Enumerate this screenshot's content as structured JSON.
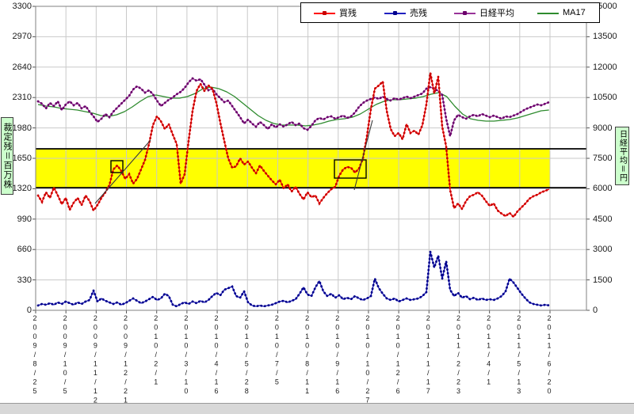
{
  "chart_data": {
    "type": "line",
    "title": "",
    "legend_position": "top",
    "grid": true,
    "colors": {
      "grid": "#c9c9c9",
      "border": "#808080",
      "band_border": "#000000",
      "annotation": "#3a3a3a",
      "background": "#ffffff"
    },
    "x_axis": {
      "labels": [
        "2009/8/25",
        "2009/10/5",
        "2009/11/12",
        "2009/12/21",
        "2010/2/1",
        "2010/3/10",
        "2010/4/16",
        "2010/5/28",
        "2010/7/5",
        "2010/8/11",
        "2010/9/16",
        "2010/10/27",
        "2010/12/6",
        "2011/1/17",
        "2011/2/23",
        "2011/4/1",
        "2011/5/13",
        "2011/6/20"
      ]
    },
    "axes": {
      "left": {
        "label": "裁定残＝百万株",
        "max": 3300,
        "ticks": [
          3300,
          2970,
          2640,
          2310,
          1980,
          1650,
          1320,
          990,
          660,
          330,
          0
        ]
      },
      "right": {
        "label": "日経平均＝円",
        "max": 15000,
        "ticks": [
          15000,
          13500,
          12000,
          10500,
          9000,
          7500,
          6000,
          4500,
          3000,
          1500,
          0
        ]
      }
    },
    "band": {
      "axis": "right",
      "from": 6050,
      "to": 7970,
      "color": "#ffff00"
    },
    "series": [
      {
        "name": "買残",
        "axis": "left",
        "color": "#ff0000",
        "marker_color": "#c80000",
        "f_start": 0.004622,
        "f_step": 0.007704,
        "values": [
          1246,
          1177,
          1281,
          1220,
          1332,
          1246,
          1152,
          1220,
          1091,
          1169,
          1220,
          1143,
          1246,
          1186,
          1083,
          1143,
          1220,
          1281,
          1358,
          1530,
          1573,
          1513,
          1427,
          1478,
          1375,
          1427,
          1530,
          1633,
          1805,
          2011,
          2106,
          2054,
          1968,
          2020,
          1908,
          1805,
          1375,
          1478,
          1839,
          2166,
          2381,
          2458,
          2381,
          2441,
          2406,
          2252,
          2037,
          1839,
          1650,
          1547,
          1564,
          1650,
          1581,
          1616,
          1547,
          1487,
          1573,
          1513,
          1461,
          1410,
          1367,
          1418,
          1324,
          1367,
          1289,
          1341,
          1263,
          1203,
          1281,
          1229,
          1246,
          1160,
          1220,
          1272,
          1315,
          1341,
          1461,
          1530,
          1556,
          1547,
          1495,
          1538,
          1650,
          1891,
          2183,
          2406,
          2441,
          2484,
          2166,
          1968,
          1891,
          1925,
          1856,
          2020,
          1925,
          1951,
          1908,
          2011,
          2234,
          2578,
          2355,
          2535,
          1994,
          1779,
          1306,
          1109,
          1160,
          1100,
          1186,
          1238,
          1255,
          1281,
          1246,
          1186,
          1134,
          1160,
          1083,
          1049,
          1023,
          1057,
          1014,
          1074,
          1117,
          1160,
          1212,
          1238,
          1255,
          1281,
          1298,
          1315
        ]
      },
      {
        "name": "売残",
        "axis": "left",
        "color": "#2020c0",
        "marker_color": "#00008b",
        "f_start": 0.004622,
        "f_step": 0.007704,
        "values": [
          52,
          69,
          60,
          77,
          60,
          86,
          69,
          95,
          77,
          60,
          86,
          69,
          95,
          112,
          215,
          95,
          129,
          103,
          86,
          69,
          86,
          60,
          77,
          103,
          129,
          103,
          77,
          95,
          120,
          146,
          112,
          129,
          180,
          155,
          60,
          43,
          69,
          86,
          69,
          95,
          77,
          103,
          86,
          112,
          155,
          189,
          163,
          223,
          241,
          258,
          155,
          137,
          206,
          86,
          52,
          43,
          52,
          43,
          52,
          60,
          77,
          95,
          103,
          86,
          103,
          120,
          180,
          249,
          172,
          155,
          249,
          318,
          206,
          155,
          180,
          137,
          163,
          120,
          137,
          120,
          155,
          129,
          112,
          129,
          155,
          344,
          241,
          180,
          129,
          112,
          129,
          95,
          112,
          129,
          112,
          120,
          129,
          155,
          198,
          636,
          464,
          593,
          344,
          533,
          223,
          155,
          189,
          137,
          155,
          120,
          137,
          112,
          129,
          112,
          120,
          112,
          129,
          155,
          206,
          344,
          301,
          241,
          180,
          129,
          86,
          69,
          60,
          52,
          60,
          52
        ]
      },
      {
        "name": "日経平均",
        "axis": "right",
        "color": "#993399",
        "marker_color": "#6a006a",
        "f_start": 0.004622,
        "f_step": 0.007704,
        "values": [
          10312,
          10195,
          9961,
          10234,
          10078,
          10312,
          9883,
          10156,
          10312,
          10117,
          10234,
          9961,
          10078,
          9805,
          9570,
          9297,
          9453,
          9688,
          9531,
          9805,
          10000,
          10195,
          10391,
          10586,
          10898,
          11055,
          10938,
          10742,
          10859,
          10664,
          10352,
          10078,
          10234,
          10391,
          10508,
          10664,
          10781,
          10977,
          11250,
          11445,
          11328,
          11406,
          11133,
          10859,
          10938,
          10664,
          10469,
          10273,
          10352,
          10078,
          9805,
          9531,
          9219,
          9414,
          9219,
          9063,
          9297,
          9141,
          8945,
          9180,
          9023,
          9180,
          9063,
          9180,
          9297,
          9141,
          9219,
          8984,
          8906,
          9102,
          9375,
          9492,
          9414,
          9531,
          9570,
          9453,
          9531,
          9609,
          9492,
          9570,
          9766,
          10039,
          10234,
          10352,
          10430,
          10508,
          10430,
          10547,
          10430,
          10352,
          10469,
          10391,
          10469,
          10547,
          10469,
          10547,
          10625,
          10703,
          10938,
          11016,
          10938,
          10820,
          10625,
          9453,
          8594,
          9375,
          9648,
          9531,
          9453,
          9570,
          9648,
          9570,
          9688,
          9609,
          9531,
          9609,
          9531,
          9453,
          9570,
          9531,
          9609,
          9688,
          9805,
          9922,
          10000,
          10078,
          10156,
          10117,
          10195,
          10273
        ]
      },
      {
        "name": "MA17",
        "axis": "right",
        "color": "#2e8b2e",
        "marker_color": null,
        "f_start": 0.004622,
        "f_step": 0.015282,
        "values": [
          10156,
          10078,
          10039,
          9961,
          9922,
          9883,
          9805,
          9727,
          9609,
          9570,
          9648,
          9805,
          10039,
          10312,
          10547,
          10625,
          10547,
          10469,
          10469,
          10547,
          10703,
          10938,
          11016,
          10938,
          10781,
          10547,
          10234,
          9922,
          9609,
          9375,
          9219,
          9141,
          9141,
          9141,
          9102,
          9141,
          9219,
          9336,
          9414,
          9453,
          9531,
          9688,
          9922,
          10156,
          10312,
          10391,
          10391,
          10430,
          10469,
          10547,
          10664,
          10742,
          10547,
          10078,
          9688,
          9453,
          9375,
          9336,
          9336,
          9375,
          9414,
          9492,
          9609,
          9727,
          9844,
          9883
        ]
      }
    ],
    "annotations": {
      "boxes": [
        {
          "x_from": 0.1464,
          "x_to": 0.1695,
          "axis": "left",
          "v_from": 1495,
          "v_to": 1624
        },
        {
          "x_from": 0.5809,
          "x_to": 0.6425,
          "axis": "left",
          "v_from": 1435,
          "v_to": 1633
        }
      ],
      "trendlines": [
        {
          "x_from": 0.1156,
          "v_from": 1160,
          "x_to": 0.2234,
          "v_to": 1848,
          "axis": "left"
        },
        {
          "x_from": 0.6194,
          "v_from": 1306,
          "x_to": 0.6548,
          "v_to": 2063,
          "axis": "left"
        }
      ]
    }
  }
}
